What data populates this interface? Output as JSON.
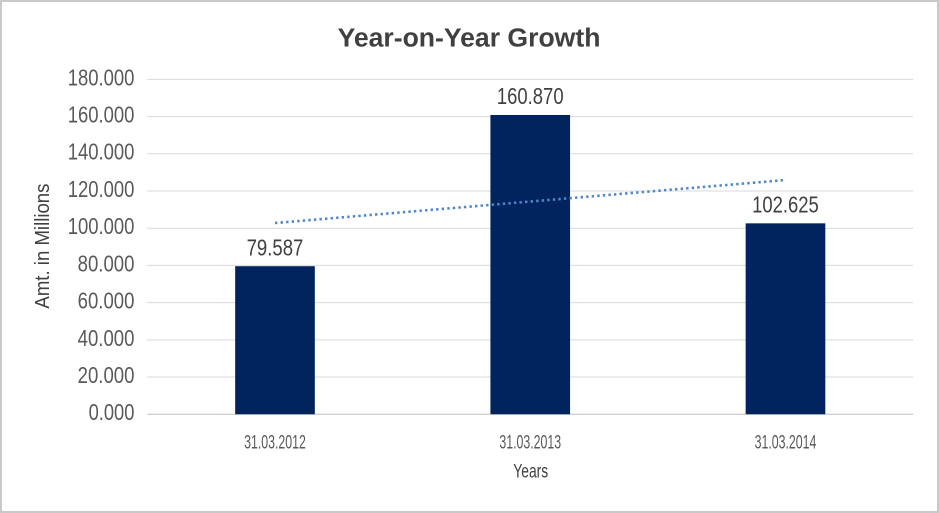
{
  "chart_data": {
    "type": "bar",
    "title": "Year-on-Year Growth",
    "categories": [
      "31.03.2012",
      "31.03.2013",
      "31.03.2014"
    ],
    "values": [
      79.587,
      160.87,
      102.625
    ],
    "data_labels": [
      "79.587",
      "160.870",
      "102.625"
    ],
    "xlabel": "Years",
    "ylabel": "Amt. in Millions",
    "ylim": [
      0,
      180
    ],
    "y_ticks": [
      0,
      20,
      40,
      60,
      80,
      100,
      120,
      140,
      160,
      180
    ],
    "y_tick_labels": [
      "0.000",
      "20.000",
      "40.000",
      "60.000",
      "80.000",
      "100.000",
      "120.000",
      "140.000",
      "160.000",
      "180.000"
    ],
    "grid": true,
    "legend": "none",
    "trendline": {
      "type": "linear",
      "style": "dotted",
      "start_value": 102.8,
      "end_value": 125.9
    }
  },
  "colors": {
    "bar": "#02245e",
    "trendline": "#4f86c6",
    "gridline": "#d9d9d9",
    "axis_line": "#bfbfbf",
    "title_text": "#404040",
    "tick_text": "#595959",
    "data_label_text": "#404040",
    "axis_title_text": "#404040",
    "chart_border": "#c9c9c9",
    "background": "#ffffff"
  }
}
